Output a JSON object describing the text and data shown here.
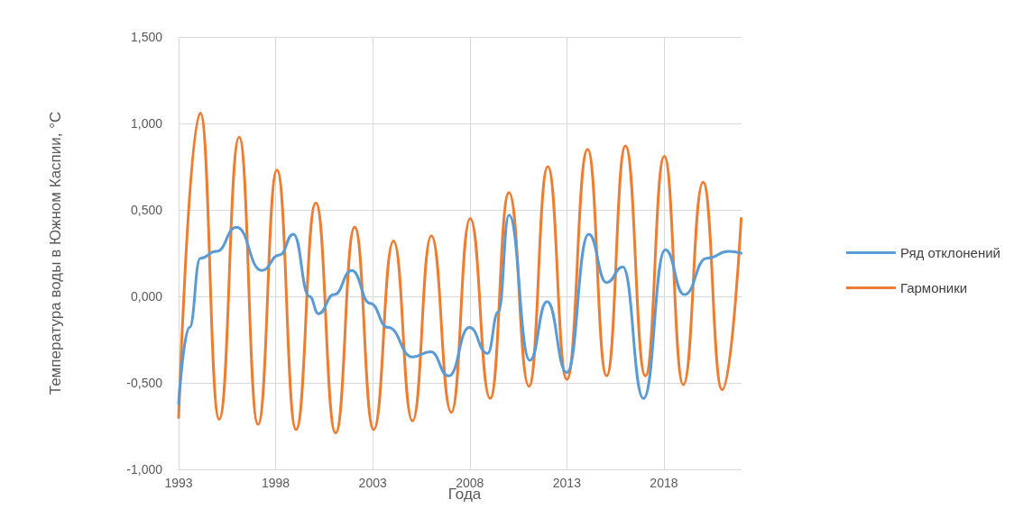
{
  "chart_data": {
    "type": "line",
    "xlabel": "Года",
    "ylabel": "Температура воды в Южном Каспии, °C",
    "xlim": [
      1993,
      2022
    ],
    "xticks": [
      1993,
      1998,
      2003,
      2008,
      2013,
      2018
    ],
    "ylim": [
      -1,
      1.5
    ],
    "yticks": [
      {
        "value": -1,
        "label": "-1,000"
      },
      {
        "value": -0.5,
        "label": "-0,500"
      },
      {
        "value": 0,
        "label": "0,000"
      },
      {
        "value": 0.5,
        "label": "0,500"
      },
      {
        "value": 1,
        "label": "1,000"
      },
      {
        "value": 1.5,
        "label": "1,500"
      }
    ],
    "grid": true,
    "legend": "right",
    "marker": "none",
    "line_style": "solid",
    "series": [
      {
        "name": "Ряд отклонений",
        "color": "#5b9bd5",
        "x": [
          1993.0,
          1993.56,
          1994.12,
          1994.95,
          1995.98,
          1997.28,
          1998.21,
          1998.91,
          1999.74,
          2000.21,
          2001.0,
          2001.93,
          2002.86,
          2003.79,
          2005.05,
          2005.98,
          2006.91,
          2007.98,
          2008.91,
          2009.47,
          2010.02,
          2011.09,
          2011.98,
          2013.0,
          2014.12,
          2015.05,
          2015.88,
          2016.95,
          2018.07,
          2019.05,
          2020.21,
          2021.33,
          2021.98
        ],
        "values": [
          -0.62,
          -0.18,
          0.22,
          0.26,
          0.4,
          0.15,
          0.24,
          0.36,
          0.0,
          -0.1,
          0.01,
          0.15,
          -0.04,
          -0.18,
          -0.35,
          -0.32,
          -0.46,
          -0.18,
          -0.33,
          -0.09,
          0.47,
          -0.37,
          -0.03,
          -0.44,
          0.36,
          0.08,
          0.17,
          -0.59,
          0.27,
          0.01,
          0.22,
          0.26,
          0.25
        ]
      },
      {
        "name": "Гармоники",
        "color": "#ed7d31",
        "x": [
          1993.0,
          1994.12,
          1995.09,
          1996.12,
          1997.09,
          1998.07,
          1999.05,
          2000.07,
          2001.09,
          2002.07,
          2003.05,
          2004.07,
          2005.05,
          2006.02,
          2007.05,
          2008.02,
          2009.05,
          2010.02,
          2011.05,
          2012.02,
          2013.0,
          2014.07,
          2015.05,
          2016.02,
          2017.05,
          2018.02,
          2019.0,
          2020.02,
          2021.0,
          2021.98
        ],
        "values": [
          -0.7,
          1.06,
          -0.71,
          0.92,
          -0.74,
          0.73,
          -0.77,
          0.54,
          -0.79,
          0.4,
          -0.77,
          0.32,
          -0.72,
          0.35,
          -0.67,
          0.45,
          -0.59,
          0.6,
          -0.52,
          0.75,
          -0.48,
          0.85,
          -0.46,
          0.87,
          -0.46,
          0.81,
          -0.51,
          0.66,
          -0.54,
          0.45
        ]
      }
    ]
  }
}
